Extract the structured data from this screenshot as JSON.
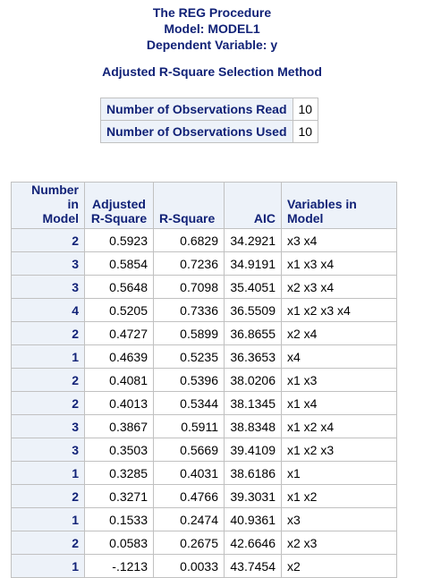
{
  "header": {
    "procedure_title": "The REG Procedure",
    "model_line": "Model: MODEL1",
    "dependent_line": "Dependent Variable: y",
    "method_title": "Adjusted R-Square Selection Method"
  },
  "observations": {
    "rows": [
      {
        "label": "Number of Observations Read",
        "value": "10"
      },
      {
        "label": "Number of Observations Used",
        "value": "10"
      }
    ]
  },
  "selection_table": {
    "headers": {
      "number_in_model_line1": "Number in",
      "number_in_model_line2": "Model",
      "adj_rsq_line1": "Adjusted",
      "adj_rsq_line2": "R-Square",
      "rsq": "R-Square",
      "aic": "AIC",
      "variables": "Variables in Model"
    },
    "rows": [
      {
        "n": "2",
        "adj": "0.5923",
        "rsq": "0.6829",
        "aic": "34.2921",
        "vars": "x3 x4"
      },
      {
        "n": "3",
        "adj": "0.5854",
        "rsq": "0.7236",
        "aic": "34.9191",
        "vars": "x1 x3 x4"
      },
      {
        "n": "3",
        "adj": "0.5648",
        "rsq": "0.7098",
        "aic": "35.4051",
        "vars": "x2 x3 x4"
      },
      {
        "n": "4",
        "adj": "0.5205",
        "rsq": "0.7336",
        "aic": "36.5509",
        "vars": "x1 x2 x3 x4"
      },
      {
        "n": "2",
        "adj": "0.4727",
        "rsq": "0.5899",
        "aic": "36.8655",
        "vars": "x2 x4"
      },
      {
        "n": "1",
        "adj": "0.4639",
        "rsq": "0.5235",
        "aic": "36.3653",
        "vars": "x4"
      },
      {
        "n": "2",
        "adj": "0.4081",
        "rsq": "0.5396",
        "aic": "38.0206",
        "vars": "x1 x3"
      },
      {
        "n": "2",
        "adj": "0.4013",
        "rsq": "0.5344",
        "aic": "38.1345",
        "vars": "x1 x4"
      },
      {
        "n": "3",
        "adj": "0.3867",
        "rsq": "0.5911",
        "aic": "38.8348",
        "vars": "x1 x2 x4"
      },
      {
        "n": "3",
        "adj": "0.3503",
        "rsq": "0.5669",
        "aic": "39.4109",
        "vars": "x1 x2 x3"
      },
      {
        "n": "1",
        "adj": "0.3285",
        "rsq": "0.4031",
        "aic": "38.6186",
        "vars": "x1"
      },
      {
        "n": "2",
        "adj": "0.3271",
        "rsq": "0.4766",
        "aic": "39.3031",
        "vars": "x1 x2"
      },
      {
        "n": "1",
        "adj": "0.1533",
        "rsq": "0.2474",
        "aic": "40.9361",
        "vars": "x3"
      },
      {
        "n": "2",
        "adj": "0.0583",
        "rsq": "0.2675",
        "aic": "42.6646",
        "vars": "x2 x3"
      },
      {
        "n": "1",
        "adj": "-.1213",
        "rsq": "0.0033",
        "aic": "43.7454",
        "vars": "x2"
      }
    ]
  }
}
